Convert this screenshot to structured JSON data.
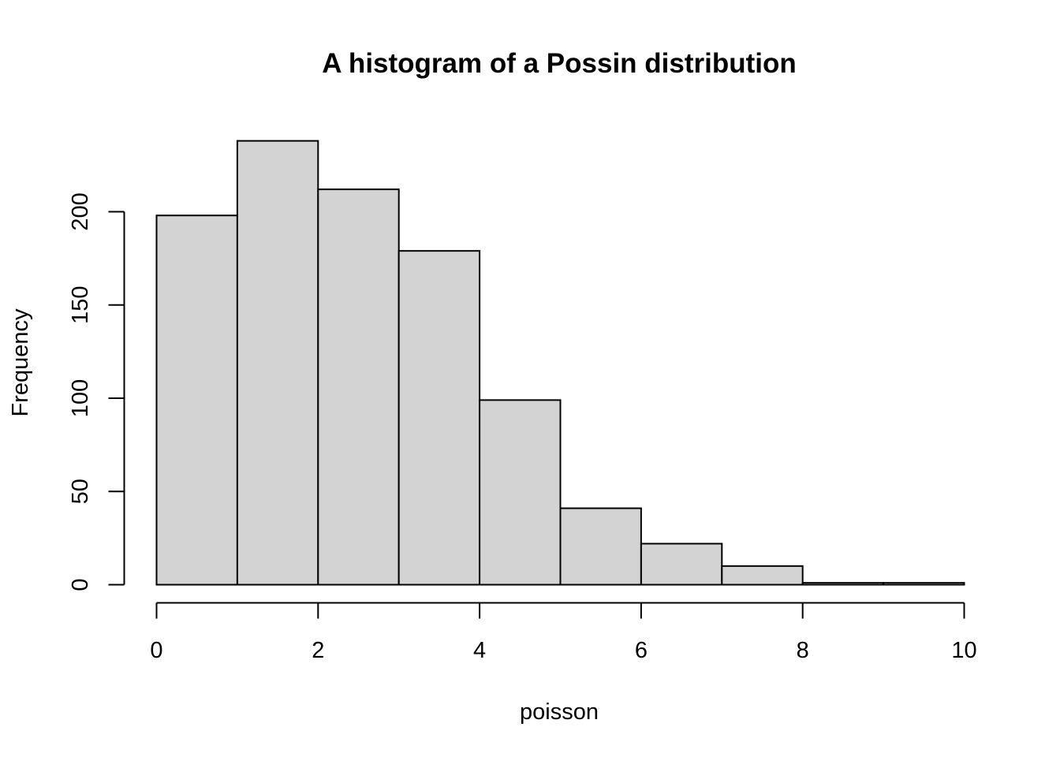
{
  "chart_data": {
    "type": "bar",
    "title": "A histogram of a Possin distribution",
    "xlabel": "poisson",
    "ylabel": "Frequency",
    "bins": [
      {
        "x0": 0,
        "x1": 1,
        "count": 198
      },
      {
        "x0": 1,
        "x1": 2,
        "count": 238
      },
      {
        "x0": 2,
        "x1": 3,
        "count": 212
      },
      {
        "x0": 3,
        "x1": 4,
        "count": 179
      },
      {
        "x0": 4,
        "x1": 5,
        "count": 99
      },
      {
        "x0": 5,
        "x1": 6,
        "count": 41
      },
      {
        "x0": 6,
        "x1": 7,
        "count": 22
      },
      {
        "x0": 7,
        "x1": 8,
        "count": 10
      },
      {
        "x0": 8,
        "x1": 9,
        "count": 1
      },
      {
        "x0": 9,
        "x1": 10,
        "count": 1
      }
    ],
    "xticks": [
      0,
      2,
      4,
      6,
      8,
      10
    ],
    "xtick_labels": [
      "0",
      "2",
      "4",
      "6",
      "8",
      "10"
    ],
    "yticks": [
      0,
      50,
      100,
      150,
      200
    ],
    "ytick_labels": [
      "0",
      "50",
      "100",
      "150",
      "200"
    ],
    "xlim": [
      0,
      10
    ],
    "ylim": [
      0,
      238
    ],
    "bar_fill": "#d3d3d3",
    "bar_stroke": "#000000",
    "grid": false,
    "legend": "none"
  }
}
